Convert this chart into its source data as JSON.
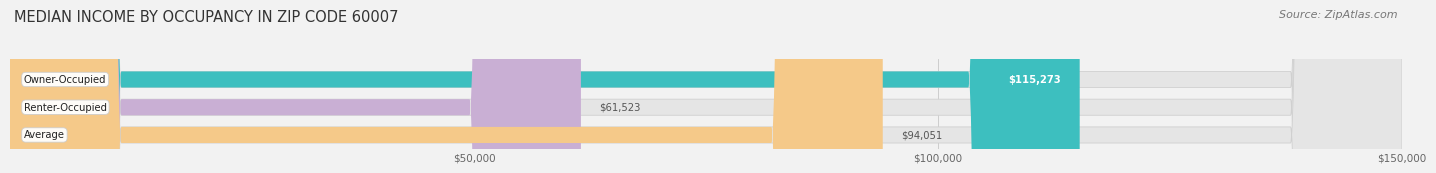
{
  "title": "MEDIAN INCOME BY OCCUPANCY IN ZIP CODE 60007",
  "source": "Source: ZipAtlas.com",
  "categories": [
    "Owner-Occupied",
    "Renter-Occupied",
    "Average"
  ],
  "values": [
    115273,
    61523,
    94051
  ],
  "bar_colors": [
    "#3dbfbf",
    "#c9afd4",
    "#f5c989"
  ],
  "value_labels": [
    "$115,273",
    "$61,523",
    "$94,051"
  ],
  "value_inside": [
    true,
    false,
    false
  ],
  "xlim": [
    0,
    150000
  ],
  "xticks": [
    50000,
    100000,
    150000
  ],
  "xtick_labels": [
    "$50,000",
    "$100,000",
    "$150,000"
  ],
  "background_color": "#f2f2f2",
  "bar_bg_color": "#e5e5e5",
  "title_fontsize": 10.5,
  "source_fontsize": 8,
  "bar_height": 0.58
}
